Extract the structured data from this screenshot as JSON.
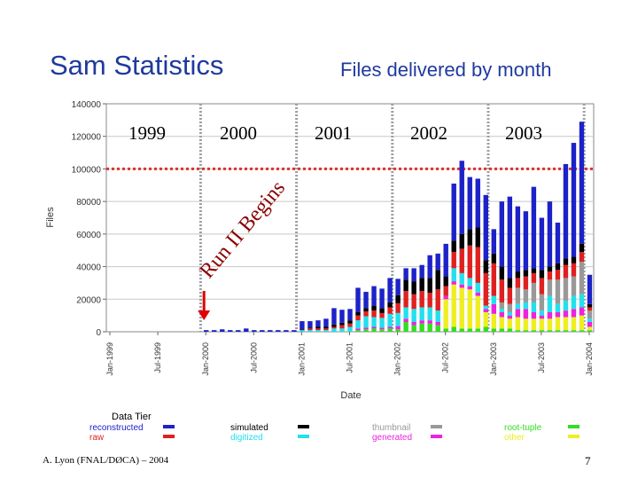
{
  "slide": {
    "title": "Sam Statistics",
    "footer_left": "A. Lyon (FNAL/DØCA) – 2004",
    "page_number": "7"
  },
  "chart_data": {
    "type": "bar",
    "stacked": true,
    "title": "Files delivered by month",
    "xlabel": "Date",
    "ylabel": "Files",
    "ylim": [
      0,
      140000
    ],
    "yticks": [
      0,
      20000,
      40000,
      60000,
      80000,
      100000,
      120000,
      140000
    ],
    "ytick_labels": [
      "0",
      "20000",
      "40000",
      "60000",
      "80000",
      "100000",
      "120000",
      "140000"
    ],
    "xtick_labels": [
      "Jan-1999",
      "Jul-1999",
      "Jan-2000",
      "Jul-2000",
      "Jan-2001",
      "Jul-2001",
      "Jan-2002",
      "Jul-2002",
      "Jan-2003",
      "Jul-2003",
      "Jan-2004"
    ],
    "year_labels": [
      "1999",
      "2000",
      "2001",
      "2002",
      "2003"
    ],
    "reference_line": {
      "value": 100000,
      "color": "#e03030"
    },
    "annotation": {
      "text": "Run II Begins",
      "color": "#8b0000"
    },
    "legend_title": "Data Tier",
    "categories": [
      "1999-01",
      "1999-02",
      "1999-03",
      "1999-04",
      "1999-05",
      "1999-06",
      "1999-07",
      "1999-08",
      "1999-09",
      "1999-10",
      "1999-11",
      "1999-12",
      "2000-01",
      "2000-02",
      "2000-03",
      "2000-04",
      "2000-05",
      "2000-06",
      "2000-07",
      "2000-08",
      "2000-09",
      "2000-10",
      "2000-11",
      "2000-12",
      "2001-01",
      "2001-02",
      "2001-03",
      "2001-04",
      "2001-05",
      "2001-06",
      "2001-07",
      "2001-08",
      "2001-09",
      "2001-10",
      "2001-11",
      "2001-12",
      "2002-01",
      "2002-02",
      "2002-03",
      "2002-04",
      "2002-05",
      "2002-06",
      "2002-07",
      "2002-08",
      "2002-09",
      "2002-10",
      "2002-11",
      "2002-12",
      "2003-01",
      "2003-02",
      "2003-03",
      "2003-04",
      "2003-05",
      "2003-06",
      "2003-07",
      "2003-08",
      "2003-09",
      "2003-10",
      "2003-11",
      "2003-12",
      "2004-01"
    ],
    "series": [
      {
        "name": "root-tuple",
        "color": "#33dd22",
        "values": [
          0,
          0,
          0,
          0,
          0,
          0,
          0,
          0,
          0,
          0,
          0,
          0,
          0,
          0,
          0,
          0,
          0,
          0,
          0,
          0,
          0,
          0,
          0,
          0,
          0,
          0,
          0,
          0,
          0,
          0,
          0,
          1000,
          1500,
          2000,
          1500,
          2000,
          1500,
          6000,
          4000,
          5000,
          5000,
          4000,
          2000,
          3000,
          2000,
          2000,
          2000,
          3000,
          2000,
          2000,
          2000,
          1000,
          1000,
          1000,
          1000,
          1000,
          1000,
          1000,
          1000,
          1000,
          1000
        ]
      },
      {
        "name": "other",
        "color": "#eeee22",
        "values": [
          0,
          0,
          0,
          0,
          0,
          0,
          0,
          0,
          0,
          0,
          0,
          0,
          0,
          0,
          0,
          0,
          0,
          0,
          0,
          0,
          0,
          0,
          0,
          0,
          0,
          0,
          0,
          0,
          0,
          0,
          0,
          0,
          0,
          0,
          0,
          0,
          0,
          0,
          0,
          0,
          0,
          0,
          18000,
          26000,
          25000,
          24000,
          20000,
          9000,
          9000,
          7000,
          6000,
          8000,
          7000,
          7000,
          7000,
          7000,
          8000,
          8000,
          8000,
          9000,
          2000
        ]
      },
      {
        "name": "generated",
        "color": "#ee22dd",
        "values": [
          0,
          0,
          0,
          0,
          0,
          0,
          0,
          0,
          0,
          0,
          0,
          0,
          0,
          0,
          0,
          0,
          0,
          0,
          0,
          0,
          0,
          0,
          0,
          0,
          0,
          0,
          0,
          0,
          0,
          0,
          0,
          1000,
          1000,
          1000,
          1000,
          1000,
          2000,
          2000,
          2000,
          2000,
          2000,
          2000,
          2000,
          2000,
          2000,
          2000,
          2000,
          2000,
          6000,
          3000,
          2000,
          5000,
          6000,
          4000,
          2000,
          4000,
          3000,
          4000,
          5000,
          5000,
          3000
        ]
      },
      {
        "name": "digitized",
        "color": "#22e0ee",
        "values": [
          0,
          0,
          0,
          0,
          0,
          0,
          0,
          0,
          0,
          0,
          0,
          0,
          0,
          0,
          0,
          0,
          0,
          0,
          0,
          0,
          0,
          0,
          0,
          0,
          1000,
          1000,
          1000,
          1000,
          2000,
          2000,
          3000,
          5000,
          7000,
          6000,
          6000,
          8000,
          8000,
          7000,
          8000,
          8000,
          8000,
          7000,
          0,
          8000,
          7000,
          5000,
          6000,
          2000,
          5000,
          2000,
          2000,
          3000,
          4000,
          6000,
          3000,
          10000,
          5000,
          6000,
          8000,
          8000,
          2000
        ]
      },
      {
        "name": "thumbnail",
        "color": "#999999",
        "values": [
          0,
          0,
          0,
          0,
          0,
          0,
          0,
          0,
          0,
          0,
          0,
          0,
          0,
          0,
          0,
          0,
          0,
          0,
          0,
          0,
          0,
          0,
          0,
          0,
          0,
          0,
          0,
          0,
          0,
          0,
          0,
          0,
          0,
          0,
          0,
          0,
          0,
          0,
          0,
          0,
          0,
          0,
          0,
          0,
          0,
          0,
          0,
          0,
          0,
          4000,
          5000,
          10000,
          8000,
          12000,
          10000,
          10000,
          15000,
          14000,
          12000,
          20000,
          5000
        ]
      },
      {
        "name": "raw",
        "color": "#e02020",
        "values": [
          0,
          0,
          0,
          0,
          0,
          0,
          0,
          0,
          0,
          0,
          0,
          0,
          0,
          0,
          0,
          0,
          0,
          0,
          0,
          0,
          0,
          0,
          0,
          0,
          0,
          1000,
          1000,
          1000,
          1000,
          2000,
          2000,
          3000,
          3000,
          4000,
          3000,
          4000,
          6000,
          10000,
          9000,
          10000,
          9000,
          13000,
          6000,
          10000,
          15000,
          20000,
          22000,
          20000,
          20000,
          14000,
          10000,
          6000,
          8000,
          6000,
          10000,
          5000,
          6000,
          8000,
          8000,
          6000,
          2000
        ]
      },
      {
        "name": "simulated",
        "color": "#000000",
        "values": [
          0,
          0,
          0,
          0,
          0,
          0,
          0,
          0,
          0,
          0,
          0,
          0,
          0,
          0,
          0,
          0,
          0,
          0,
          0,
          0,
          0,
          0,
          0,
          0,
          500,
          500,
          1000,
          1000,
          1500,
          1500,
          2000,
          2000,
          2000,
          3000,
          3000,
          3000,
          5000,
          7000,
          8000,
          8000,
          9000,
          12000,
          6000,
          7000,
          9000,
          10000,
          12000,
          8000,
          6000,
          8000,
          6000,
          4000,
          4000,
          3000,
          5000,
          3000,
          4000,
          4000,
          4000,
          5000,
          2000
        ]
      },
      {
        "name": "reconstructed",
        "color": "#1d22c8",
        "values": [
          0,
          0,
          0,
          0,
          0,
          0,
          0,
          0,
          0,
          0,
          0,
          0,
          1000,
          1000,
          1500,
          1000,
          1000,
          2000,
          1000,
          1000,
          1000,
          1000,
          1000,
          1000,
          5000,
          4000,
          4000,
          5000,
          10000,
          8000,
          7000,
          15000,
          10000,
          12000,
          12000,
          15000,
          10000,
          7000,
          8000,
          8000,
          14000,
          10000,
          20000,
          35000,
          45000,
          32000,
          30000,
          40000,
          15000,
          40000,
          50000,
          40000,
          36000,
          50000,
          32000,
          40000,
          25000,
          58000,
          70000,
          75000,
          18000
        ]
      }
    ],
    "legend_columns": [
      [
        "reconstructed",
        "raw"
      ],
      [
        "simulated",
        "digitized"
      ],
      [
        "thumbnail",
        "generated"
      ],
      [
        "root-tuple",
        "other"
      ]
    ]
  }
}
